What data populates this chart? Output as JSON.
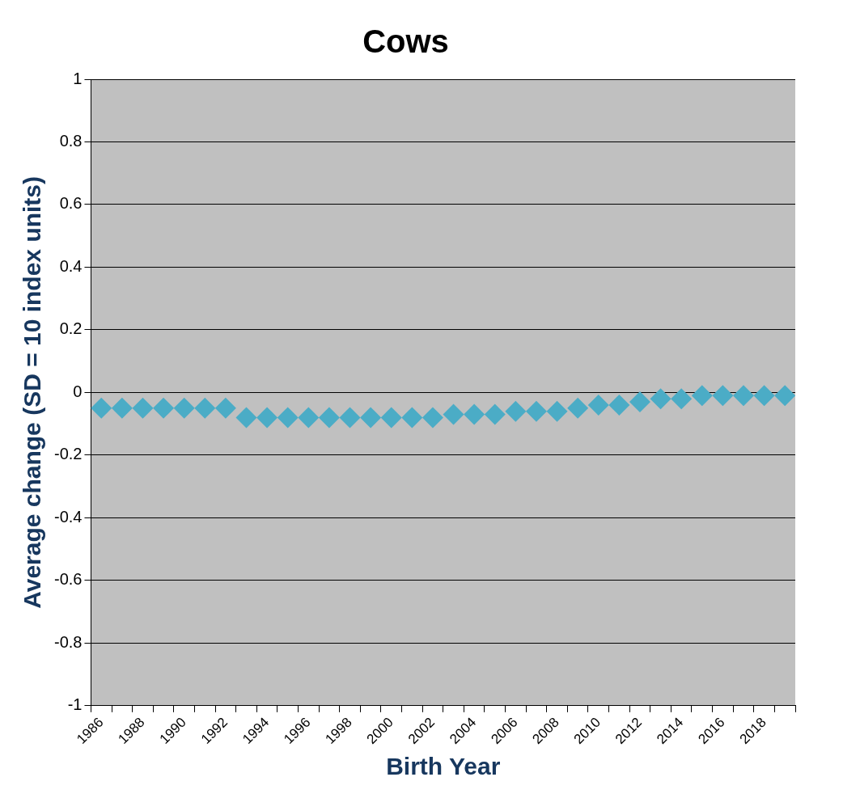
{
  "chart_data": {
    "type": "scatter",
    "title": "Cows",
    "xlabel": "Birth Year",
    "ylabel": "Average change (SD = 10 index units)",
    "categories": [
      "1986",
      null,
      "1988",
      null,
      "1990",
      null,
      "1992",
      null,
      "1994",
      null,
      "1996",
      null,
      "1998",
      null,
      "2000",
      null,
      "2002",
      null,
      "2004",
      null,
      "2006",
      null,
      "2008",
      null,
      "2010",
      null,
      "2012",
      null,
      "2014",
      null,
      "2016",
      null,
      "2018",
      null
    ],
    "series": [
      {
        "color": "#4bacc6",
        "values": [
          -0.05,
          -0.05,
          -0.05,
          -0.05,
          -0.05,
          -0.05,
          -0.05,
          -0.08,
          -0.08,
          -0.08,
          -0.08,
          -0.08,
          -0.08,
          -0.08,
          -0.08,
          -0.08,
          -0.08,
          -0.07,
          -0.07,
          -0.07,
          -0.06,
          -0.06,
          -0.06,
          -0.05,
          -0.04,
          -0.04,
          -0.03,
          -0.02,
          -0.02,
          -0.01,
          -0.01,
          -0.01,
          -0.01,
          -0.01
        ]
      }
    ],
    "ylim": [
      -1,
      1
    ],
    "yticks": [
      -1,
      -0.8,
      -0.6,
      -0.4,
      -0.2,
      0,
      0.2,
      0.4,
      0.6,
      0.8,
      1
    ],
    "grid": "y",
    "legend": false,
    "marker": "diamond"
  }
}
